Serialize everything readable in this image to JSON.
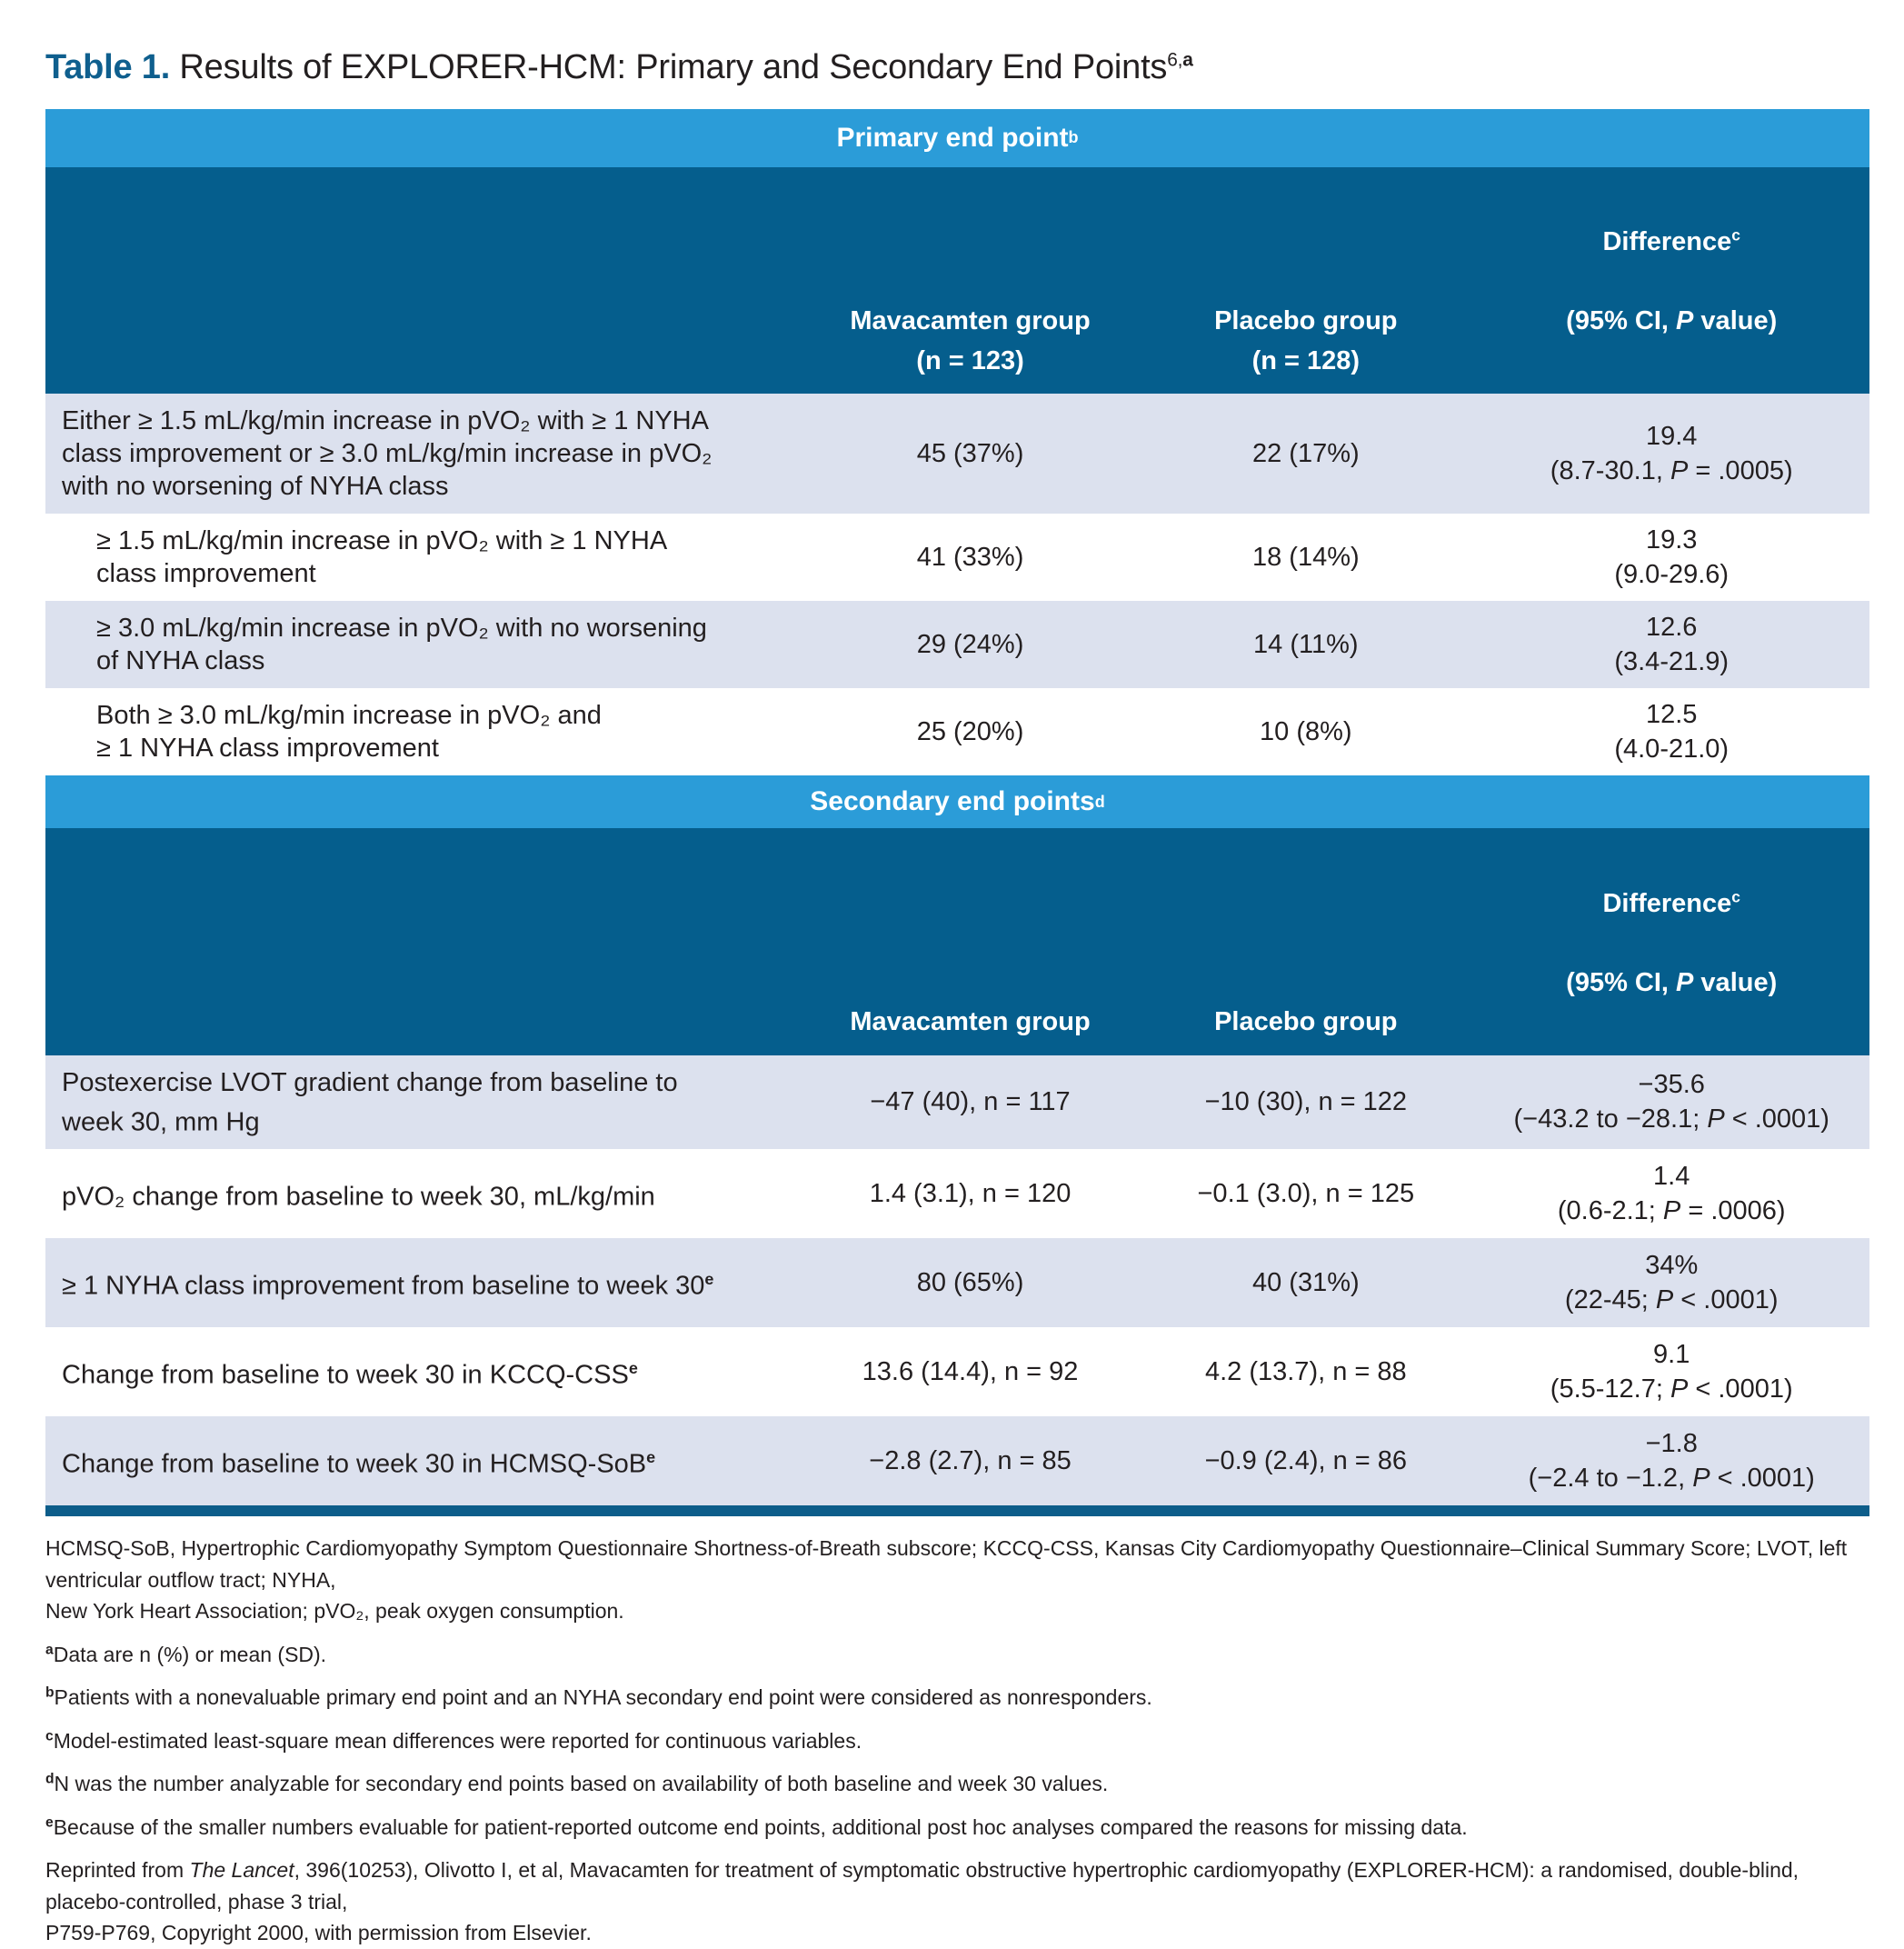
{
  "colors": {
    "band_light_blue": "#2b9cd8",
    "header_dark_blue": "#055e8d",
    "row_lavender": "#dce1ee",
    "title_blue": "#0f5f8e",
    "text": "#231f20"
  },
  "title": {
    "label": "Table 1.",
    "text": " Results of EXPLORER-HCM: Primary and Secondary End Points",
    "sup_num": "6,",
    "sup_letter": "a"
  },
  "primary": {
    "band": {
      "text": "Primary end point",
      "sup": "b"
    },
    "header": {
      "mava": "Mavacamten group\n(n = 123)",
      "placebo": "Placebo group\n(n = 128)",
      "diff": {
        "text": "Difference",
        "sup": "c"
      },
      "diff_sub": [
        "(95% CI, ",
        "P",
        " value)"
      ]
    },
    "rows": [
      {
        "label": "Either ≥ 1.5 mL/kg/min increase in pVO₂ with ≥ 1 NYHA\nclass improvement or ≥ 3.0 mL/kg/min increase in pVO₂\nwith no worsening of NYHA class",
        "mava": "45 (37%)",
        "placebo": "22 (17%)",
        "diff": "19.4",
        "ci": [
          "(8.7-30.1, ",
          "P",
          " = .0005)"
        ]
      },
      {
        "label": "≥ 1.5 mL/kg/min increase in pVO₂ with ≥ 1 NYHA\nclass improvement",
        "mava": "41 (33%)",
        "placebo": "18 (14%)",
        "diff": "19.3",
        "ci": [
          "(9.0-29.6)",
          "",
          ""
        ]
      },
      {
        "label": "≥ 3.0 mL/kg/min increase in pVO₂ with no worsening\nof NYHA class",
        "mava": "29 (24%)",
        "placebo": "14 (11%)",
        "diff": "12.6",
        "ci": [
          "(3.4-21.9)",
          "",
          ""
        ]
      },
      {
        "label": "Both ≥ 3.0 mL/kg/min increase in pVO₂ and\n≥ 1 NYHA class improvement",
        "mava": "25 (20%)",
        "placebo": "10 (8%)",
        "diff": "12.5",
        "ci": [
          "(4.0-21.0)",
          "",
          ""
        ]
      }
    ]
  },
  "secondary": {
    "band": {
      "text": "Secondary end points",
      "sup": "d"
    },
    "header": {
      "mava": "Mavacamten group",
      "placebo": "Placebo group",
      "diff": {
        "text": "Difference",
        "sup": "c"
      },
      "diff_sub": [
        "(95% CI, ",
        "P",
        " value)"
      ]
    },
    "rows": [
      {
        "label": "Postexercise LVOT gradient change from baseline to\nweek 30, mm Hg",
        "label_sup": "",
        "mava": "−47 (40), n = 117",
        "placebo": "−10 (30), n = 122",
        "diff": "−35.6",
        "ci": [
          "(−43.2 to −28.1; ",
          "P",
          " < .0001)"
        ]
      },
      {
        "label": "pVO₂ change from baseline to week 30, mL/kg/min",
        "label_sup": "",
        "mava": "1.4 (3.1), n = 120",
        "placebo": "−0.1 (3.0), n = 125",
        "diff": "1.4",
        "ci": [
          "(0.6-2.1; ",
          "P",
          " = .0006)"
        ]
      },
      {
        "label": "≥ 1 NYHA class improvement from baseline to week 30",
        "label_sup": "e",
        "mava": "80 (65%)",
        "placebo": "40 (31%)",
        "diff": "34%",
        "ci": [
          "(22-45; ",
          "P",
          " < .0001)"
        ]
      },
      {
        "label": "Change from baseline to week 30 in KCCQ-CSS",
        "label_sup": "e",
        "mava": "13.6 (14.4), n = 92",
        "placebo": "4.2 (13.7), n = 88",
        "diff": "9.1",
        "ci": [
          "(5.5-12.7; ",
          "P",
          " < .0001)"
        ]
      },
      {
        "label": "Change from baseline to week 30 in HCMSQ-SoB",
        "label_sup": "e",
        "mava": "−2.8 (2.7), n = 85",
        "placebo": "−0.9 (2.4), n = 86",
        "diff": "−1.8",
        "ci": [
          "(−2.4 to −1.2, ",
          "P",
          " < .0001)"
        ]
      }
    ]
  },
  "footnotes": [
    {
      "sup": "",
      "text": "HCMSQ-SoB, Hypertrophic Cardiomyopathy Symptom Questionnaire Shortness-of-Breath subscore; KCCQ-CSS, Kansas City Cardiomyopathy Questionnaire–Clinical Summary Score; LVOT, left ventricular outflow tract; NYHA,\nNew York Heart Association; pVO₂, peak oxygen consumption."
    },
    {
      "sup": "a",
      "text": "Data are n (%) or mean (SD)."
    },
    {
      "sup": "b",
      "text": "Patients with a nonevaluable primary end point and an NYHA secondary end point were considered as nonresponders."
    },
    {
      "sup": "c",
      "text": "Model-estimated least-square mean differences were reported for continuous variables."
    },
    {
      "sup": "d",
      "text": "N was the number analyzable for secondary end points based on availability of both baseline and week 30 values."
    },
    {
      "sup": "e",
      "text": "Because of the smaller numbers evaluable for patient-reported outcome end points, additional post hoc analyses compared the reasons for missing data."
    }
  ],
  "reprint": {
    "pre": "Reprinted from ",
    "italic": "The Lancet",
    "post": ", 396(10253), Olivotto I, et al, Mavacamten for treatment of symptomatic obstructive hypertrophic cardiomyopathy (EXPLORER-HCM): a randomised, double-blind, placebo-controlled, phase 3 trial,\nP759-P769, Copyright 2000, with permission from Elsevier."
  }
}
